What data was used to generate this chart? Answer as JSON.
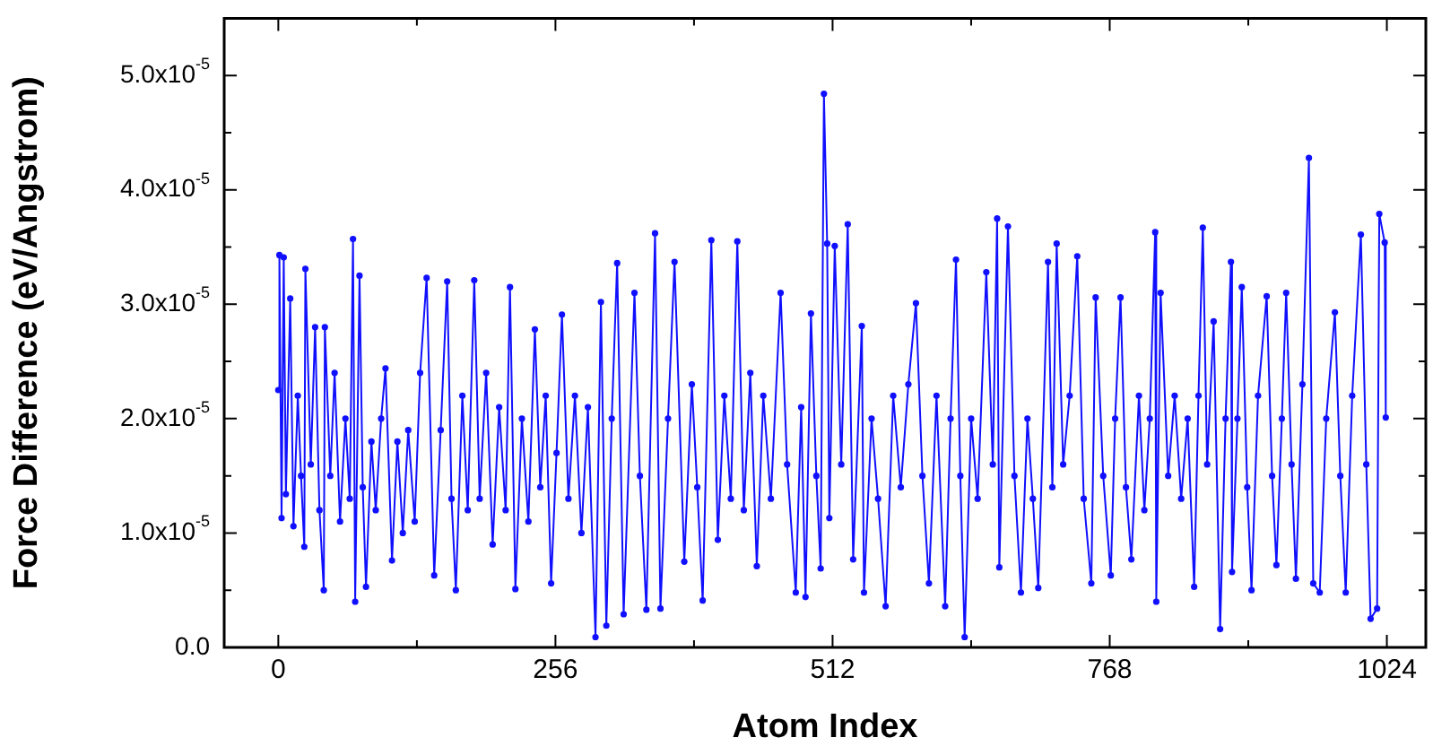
{
  "chart_data": {
    "type": "line",
    "xlabel": "Atom Index",
    "ylabel": "Force Difference (eV/Angstrom)",
    "xlim": [
      -50,
      1060
    ],
    "ylim": [
      0,
      5.5e-05
    ],
    "xticks": [
      0,
      {
        "value": 128,
        "label": null
      },
      256,
      {
        "value": 384,
        "label": null
      },
      512,
      {
        "value": 640,
        "label": null
      },
      768,
      {
        "value": 896,
        "label": null
      },
      1024
    ],
    "yticks": [
      {
        "value": 0,
        "label": "0.0"
      },
      {
        "value": 5e-06,
        "label": null
      },
      {
        "value": 1e-05,
        "label": "1.0x10$^{-5}$"
      },
      {
        "value": 1.5e-05,
        "label": null
      },
      {
        "value": 2e-05,
        "label": "2.0x10$^{-5}$"
      },
      {
        "value": 2.5e-05,
        "label": null
      },
      {
        "value": 3e-05,
        "label": "3.0x10$^{-5}$"
      },
      {
        "value": 3.5e-05,
        "label": null
      },
      {
        "value": 4e-05,
        "label": "4.0x10$^{-5}$"
      },
      {
        "value": 4.5e-05,
        "label": null
      },
      {
        "value": 5e-05,
        "label": "5.0x10$^{-5}$"
      }
    ],
    "grid": false,
    "legend": false,
    "marker": "circle",
    "line_style": "solid",
    "series": [
      {
        "color": "#1010ff",
        "x": [
          0,
          1,
          3,
          5,
          7,
          11,
          14,
          18,
          21,
          24,
          25,
          30,
          34,
          38,
          42,
          43,
          48,
          52,
          57,
          62,
          66,
          69,
          71,
          75,
          78,
          81,
          86,
          90,
          95,
          99,
          105,
          110,
          115,
          120,
          126,
          131,
          137,
          144,
          150,
          156,
          160,
          164,
          170,
          175,
          181,
          186,
          192,
          198,
          204,
          210,
          214,
          219,
          225,
          231,
          237,
          242,
          247,
          252,
          257,
          262,
          268,
          274,
          280,
          286,
          293,
          298,
          303,
          308,
          313,
          319,
          329,
          334,
          340,
          348,
          353,
          360,
          366,
          375,
          382,
          387,
          392,
          400,
          406,
          412,
          418,
          424,
          430,
          436,
          442,
          448,
          455,
          464,
          470,
          478,
          483,
          487,
          492,
          497,
          501,
          504,
          507,
          509,
          514,
          520,
          526,
          531,
          539,
          541,
          548,
          554,
          561,
          568,
          575,
          582,
          589,
          595,
          601,
          608,
          616,
          621,
          626,
          630,
          634,
          640,
          646,
          654,
          660,
          664,
          666,
          674,
          680,
          686,
          692,
          697,
          702,
          711,
          715,
          719,
          725,
          731,
          738,
          744,
          751,
          755,
          762,
          769,
          773,
          778,
          783,
          788,
          795,
          800,
          805,
          810,
          811,
          815,
          822,
          828,
          834,
          840,
          846,
          850,
          854,
          858,
          864,
          870,
          875,
          880,
          881,
          886,
          890,
          895,
          899,
          905,
          913,
          918,
          922,
          927,
          931,
          936,
          940,
          946,
          952,
          956,
          962,
          968,
          976,
          981,
          986,
          992,
          1000,
          1005,
          1009,
          1015,
          1017,
          1022,
          1023
        ],
        "values": [
          2.25e-05,
          3.43e-05,
          1.13e-05,
          3.41e-05,
          1.34e-05,
          3.05e-05,
          1.06e-05,
          2.2e-05,
          1.5e-05,
          8.8e-06,
          3.31e-05,
          1.6e-05,
          2.8e-05,
          1.2e-05,
          5e-06,
          2.8e-05,
          1.5e-05,
          2.4e-05,
          1.1e-05,
          2e-05,
          1.3e-05,
          3.57e-05,
          4e-06,
          3.25e-05,
          1.4e-05,
          5.3e-06,
          1.8e-05,
          1.2e-05,
          2e-05,
          2.44e-05,
          7.6e-06,
          1.8e-05,
          1e-05,
          1.9e-05,
          1.1e-05,
          2.4e-05,
          3.23e-05,
          6.3e-06,
          1.9e-05,
          3.2e-05,
          1.3e-05,
          5e-06,
          2.2e-05,
          1.2e-05,
          3.21e-05,
          1.3e-05,
          2.4e-05,
          9e-06,
          2.1e-05,
          1.2e-05,
          3.15e-05,
          5.1e-06,
          2e-05,
          1.1e-05,
          2.78e-05,
          1.4e-05,
          2.2e-05,
          5.6e-06,
          1.7e-05,
          2.91e-05,
          1.3e-05,
          2.2e-05,
          1e-05,
          2.1e-05,
          9e-07,
          3.02e-05,
          1.9e-06,
          2e-05,
          3.36e-05,
          2.9e-06,
          3.1e-05,
          1.5e-05,
          3.3e-06,
          3.62e-05,
          3.4e-06,
          2e-05,
          3.37e-05,
          7.5e-06,
          2.3e-05,
          1.4e-05,
          4.1e-06,
          3.56e-05,
          9.4e-06,
          2.2e-05,
          1.3e-05,
          3.55e-05,
          1.2e-05,
          2.4e-05,
          7.1e-06,
          2.2e-05,
          1.3e-05,
          3.1e-05,
          1.6e-05,
          4.8e-06,
          2.1e-05,
          4.4e-06,
          2.92e-05,
          1.5e-05,
          6.9e-06,
          4.84e-05,
          3.53e-05,
          1.13e-05,
          3.51e-05,
          1.6e-05,
          3.7e-05,
          7.7e-06,
          2.81e-05,
          4.8e-06,
          2e-05,
          1.3e-05,
          3.6e-06,
          2.2e-05,
          1.4e-05,
          2.3e-05,
          3.01e-05,
          1.5e-05,
          5.6e-06,
          2.2e-05,
          3.6e-06,
          2e-05,
          3.39e-05,
          1.5e-05,
          9e-07,
          2e-05,
          1.3e-05,
          3.28e-05,
          1.6e-05,
          3.75e-05,
          7e-06,
          3.68e-05,
          1.5e-05,
          4.8e-06,
          2e-05,
          1.3e-05,
          5.2e-06,
          3.37e-05,
          1.4e-05,
          3.53e-05,
          1.6e-05,
          2.2e-05,
          3.42e-05,
          1.3e-05,
          5.6e-06,
          3.06e-05,
          1.5e-05,
          6.3e-06,
          2e-05,
          3.06e-05,
          1.4e-05,
          7.7e-06,
          2.2e-05,
          1.2e-05,
          2e-05,
          3.63e-05,
          4e-06,
          3.1e-05,
          1.5e-05,
          2.2e-05,
          1.3e-05,
          2e-05,
          5.3e-06,
          2.2e-05,
          3.67e-05,
          1.6e-05,
          2.85e-05,
          1.6e-06,
          2e-05,
          3.37e-05,
          6.6e-06,
          2e-05,
          3.15e-05,
          1.4e-05,
          5e-06,
          2.2e-05,
          3.07e-05,
          1.5e-05,
          7.2e-06,
          2e-05,
          3.1e-05,
          1.6e-05,
          6e-06,
          2.3e-05,
          4.28e-05,
          5.6e-06,
          4.8e-06,
          2e-05,
          2.93e-05,
          1.5e-05,
          4.8e-06,
          2.2e-05,
          3.61e-05,
          1.6e-05,
          2.5e-06,
          3.4e-06,
          3.79e-05,
          3.54e-05,
          2.01e-05
        ]
      }
    ]
  }
}
